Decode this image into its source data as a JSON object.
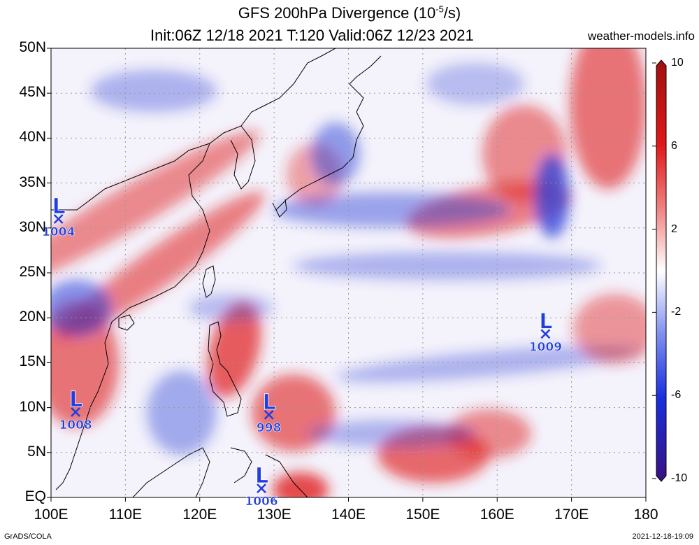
{
  "header": {
    "title_main": "GFS 200hPa Divergence (10",
    "title_exp": "-5",
    "title_unit": "/s)",
    "subtitle": "Init:06Z 12/18 2021 T:120 Valid:06Z 12/23 2021",
    "site": "weather-models.info"
  },
  "footer": {
    "left": "GrADS/COLA",
    "right": "2021-12-18-19:09"
  },
  "axes": {
    "lat_labels": [
      "50N",
      "45N",
      "40N",
      "35N",
      "30N",
      "25N",
      "20N",
      "15N",
      "10N",
      "5N",
      "EQ"
    ],
    "lon_labels": [
      "100E",
      "110E",
      "120E",
      "130E",
      "140E",
      "150E",
      "160E",
      "170E",
      "180"
    ]
  },
  "colorbar": {
    "labels": [
      "10",
      "6",
      "2",
      "-2",
      "-6",
      "-10"
    ],
    "range": [
      -10,
      10
    ]
  },
  "lows": [
    {
      "mark": "L",
      "pressure": "1004",
      "lon": 101.0,
      "lat": 31.0
    },
    {
      "mark": "L",
      "pressure": "1008",
      "lon": 103.3,
      "lat": 9.5
    },
    {
      "mark": "L",
      "pressure": "998",
      "lon": 129.3,
      "lat": 9.2
    },
    {
      "mark": "L",
      "pressure": "1006",
      "lon": 128.3,
      "lat": 1.0
    },
    {
      "mark": "L",
      "pressure": "1009",
      "lon": 166.5,
      "lat": 18.2
    }
  ],
  "colors": {
    "divergence": "#e02020",
    "convergence": "#2a3fd8",
    "low_marker": "#1f3de0",
    "grid": "#999999"
  }
}
